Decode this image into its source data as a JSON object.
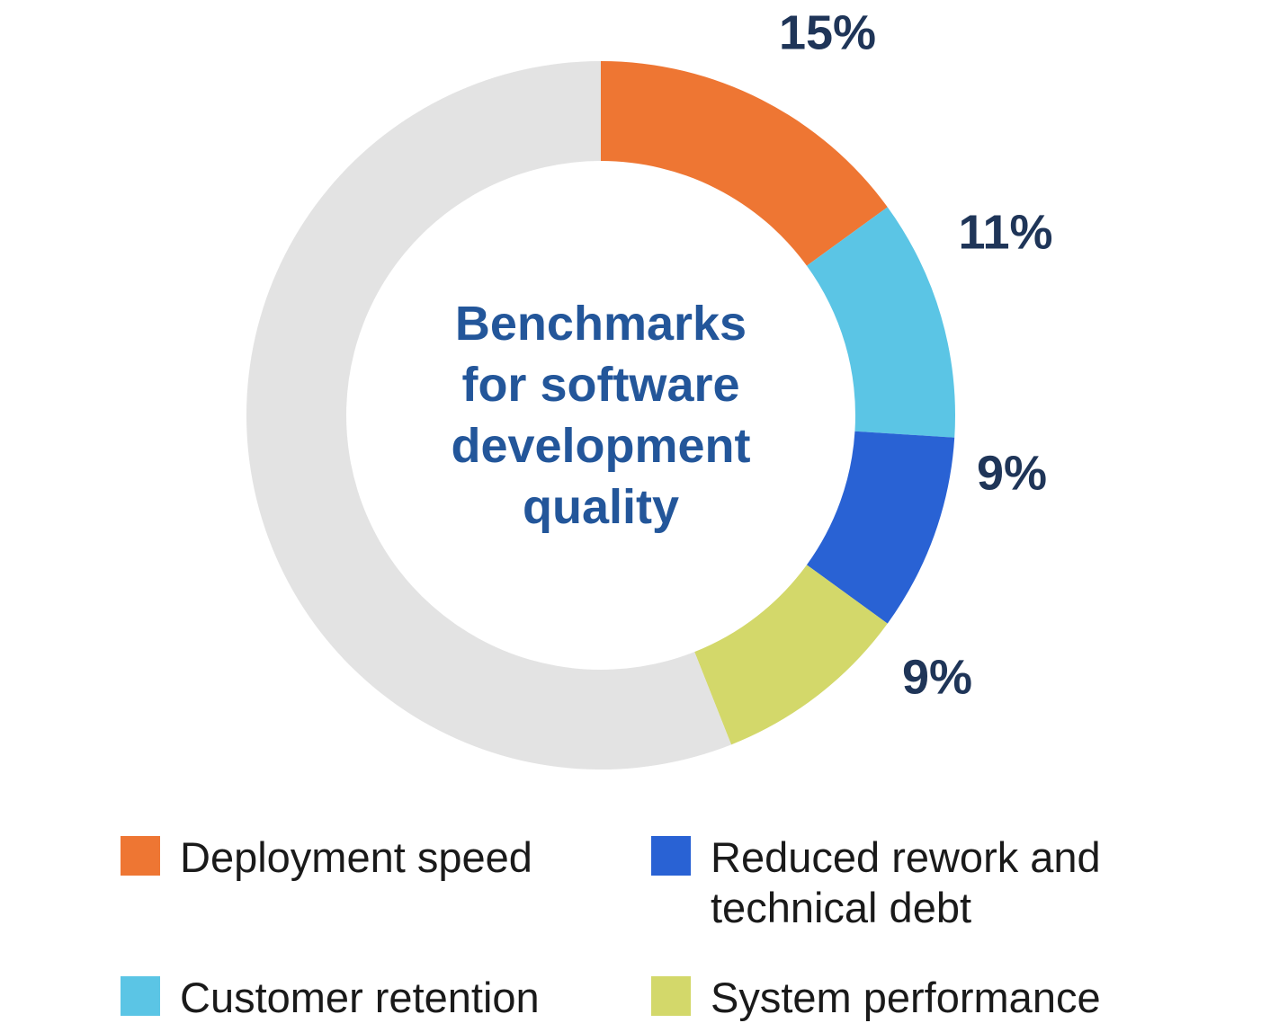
{
  "chart_data": {
    "type": "pie",
    "center_title_lines": [
      "Benchmarks",
      "for software",
      "development",
      "quality"
    ],
    "slices": [
      {
        "name": "Deployment speed",
        "value": 15,
        "label": "15%",
        "color": "#EE7633"
      },
      {
        "name": "Customer retention",
        "value": 11,
        "label": "11%",
        "color": "#5BC5E5"
      },
      {
        "name": "Reduced rework and technical debt",
        "value": 9,
        "label": "9%",
        "color": "#2962D4"
      },
      {
        "name": "System performance",
        "value": 9,
        "label": "9%",
        "color": "#D3D86A"
      }
    ],
    "remainder": {
      "value": 56,
      "color": "#E3E3E3"
    },
    "legend": {
      "placement": "bottom",
      "items": [
        {
          "label": "Deployment speed",
          "color": "#EE7633"
        },
        {
          "label": "Reduced rework and\ntechnical debt",
          "color": "#2962D4"
        },
        {
          "label": "Customer retention",
          "color": "#5BC5E5"
        },
        {
          "label": "System performance",
          "color": "#D3D86A"
        }
      ]
    },
    "colors": {
      "title": "#23569A",
      "value_labels": "#1F3558"
    }
  }
}
